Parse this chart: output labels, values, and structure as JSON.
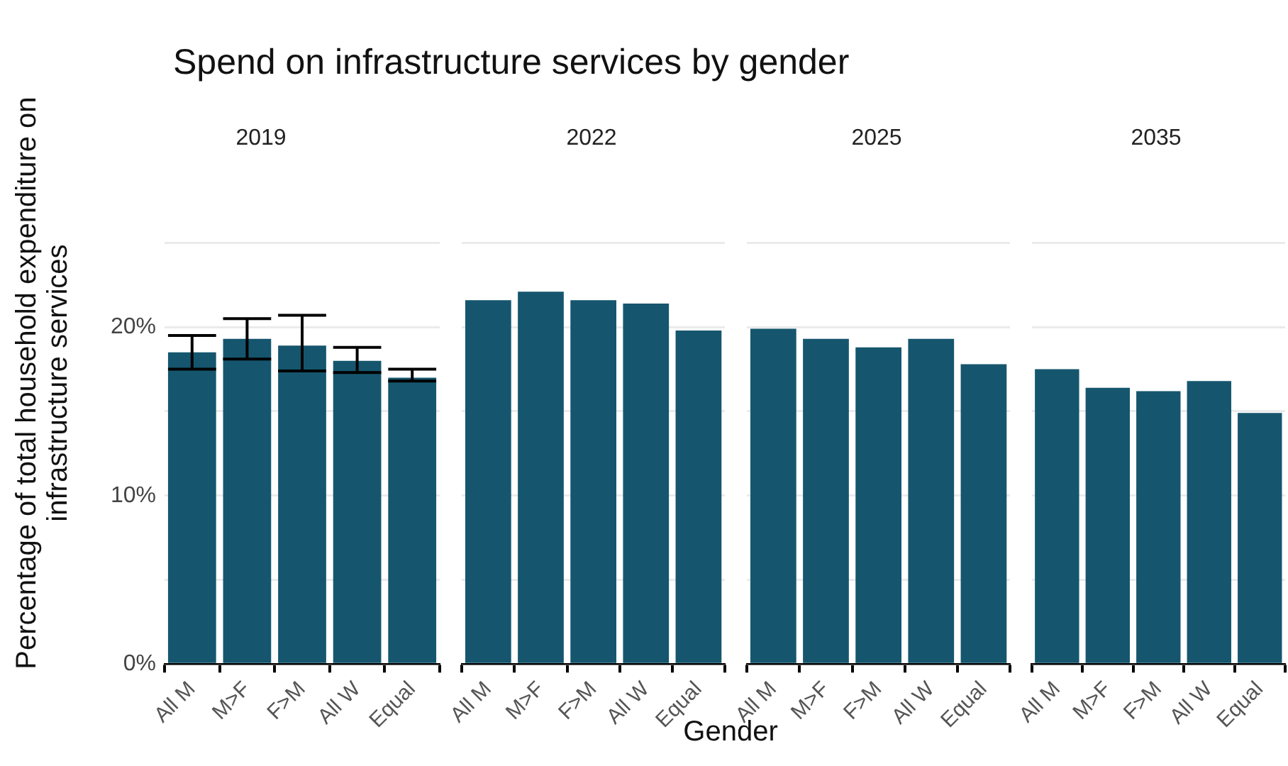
{
  "chart_data": [
    {
      "type": "bar",
      "title": "Spend on infrastructure services by gender",
      "subtitle": "2019",
      "ylabel": "Percentage of total household expenditure on infrastructure services",
      "categories": [
        "All M",
        "M>F",
        "F>M",
        "All W",
        "Equal"
      ],
      "series": [
        {
          "color": "#15566e",
          "values": [
            18.5,
            19.3,
            18.9,
            18.0,
            17.0
          ],
          "errors": [
            [
              17.5,
              19.5
            ],
            [
              18.1,
              20.5
            ],
            [
              17.4,
              20.7
            ],
            [
              17.3,
              18.8
            ],
            [
              16.8,
              17.5
            ]
          ]
        }
      ],
      "ylim": [
        0,
        25
      ],
      "yticks": [
        {
          "value": 0,
          "label": "0%"
        },
        {
          "value": 5,
          "label": null
        },
        {
          "value": 10,
          "label": "10%"
        },
        {
          "value": 15,
          "label": null
        },
        {
          "value": 20,
          "label": "20%"
        },
        {
          "value": 25,
          "label": null
        }
      ],
      "grid": "y"
    },
    {
      "type": "bar",
      "subtitle": "2022",
      "xlabel": "Gender",
      "categories": [
        "All M",
        "M>F",
        "F>M",
        "All W",
        "Equal"
      ],
      "series": [
        {
          "color": "#15566e",
          "values": [
            21.6,
            22.1,
            21.6,
            21.4,
            19.8
          ]
        }
      ],
      "ylim": [
        0,
        25
      ],
      "yticks": [
        0,
        5,
        10,
        15,
        20,
        25
      ],
      "grid": "y",
      "tick_labels": "x"
    },
    {
      "type": "bar",
      "subtitle": "2025",
      "categories": [
        "All M",
        "M>F",
        "F>M",
        "All W",
        "Equal"
      ],
      "series": [
        {
          "color": "#15566e",
          "values": [
            19.9,
            19.3,
            18.8,
            19.3,
            17.8
          ]
        }
      ],
      "ylim": [
        0,
        25
      ],
      "yticks": [
        0,
        5,
        10,
        15,
        20,
        25
      ],
      "grid": "y",
      "tick_labels": "x"
    },
    {
      "type": "bar",
      "subtitle": "2035",
      "categories": [
        "All M",
        "M>F",
        "F>M",
        "All W",
        "Equal"
      ],
      "series": [
        {
          "color": "#15566e",
          "values": [
            17.5,
            16.4,
            16.2,
            16.8,
            14.9
          ]
        }
      ],
      "ylim": [
        0,
        25
      ],
      "yticks": [
        0,
        5,
        10,
        15,
        20,
        25
      ],
      "grid": "y",
      "tick_labels": "x"
    }
  ]
}
